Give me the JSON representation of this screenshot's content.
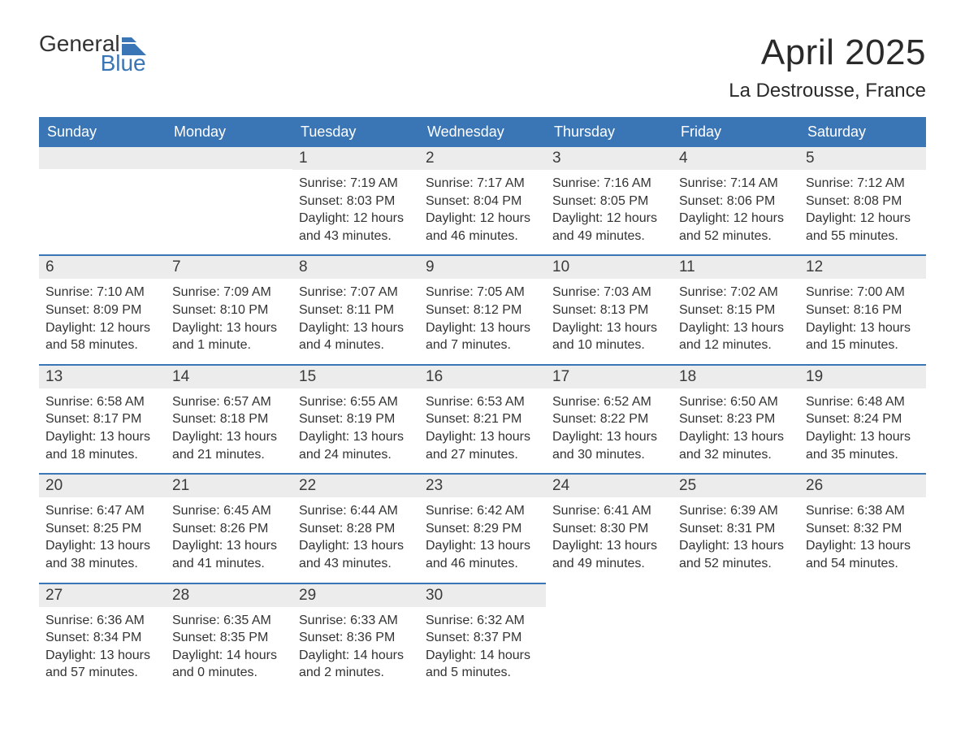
{
  "logo": {
    "general": "General",
    "blue": "Blue"
  },
  "title": {
    "month": "April 2025",
    "location": "La Destrousse, France"
  },
  "colors": {
    "header_bg": "#3a76b5",
    "header_text": "#ffffff",
    "daynum_bg": "#ececec",
    "border_top": "#3a76b5",
    "body_text": "#333333",
    "page_bg": "#ffffff",
    "logo_blue": "#3a76b5"
  },
  "weekdays": [
    "Sunday",
    "Monday",
    "Tuesday",
    "Wednesday",
    "Thursday",
    "Friday",
    "Saturday"
  ],
  "weeks": [
    [
      null,
      null,
      {
        "n": "1",
        "sunrise": "Sunrise: 7:19 AM",
        "sunset": "Sunset: 8:03 PM",
        "daylight": "Daylight: 12 hours and 43 minutes."
      },
      {
        "n": "2",
        "sunrise": "Sunrise: 7:17 AM",
        "sunset": "Sunset: 8:04 PM",
        "daylight": "Daylight: 12 hours and 46 minutes."
      },
      {
        "n": "3",
        "sunrise": "Sunrise: 7:16 AM",
        "sunset": "Sunset: 8:05 PM",
        "daylight": "Daylight: 12 hours and 49 minutes."
      },
      {
        "n": "4",
        "sunrise": "Sunrise: 7:14 AM",
        "sunset": "Sunset: 8:06 PM",
        "daylight": "Daylight: 12 hours and 52 minutes."
      },
      {
        "n": "5",
        "sunrise": "Sunrise: 7:12 AM",
        "sunset": "Sunset: 8:08 PM",
        "daylight": "Daylight: 12 hours and 55 minutes."
      }
    ],
    [
      {
        "n": "6",
        "sunrise": "Sunrise: 7:10 AM",
        "sunset": "Sunset: 8:09 PM",
        "daylight": "Daylight: 12 hours and 58 minutes."
      },
      {
        "n": "7",
        "sunrise": "Sunrise: 7:09 AM",
        "sunset": "Sunset: 8:10 PM",
        "daylight": "Daylight: 13 hours and 1 minute."
      },
      {
        "n": "8",
        "sunrise": "Sunrise: 7:07 AM",
        "sunset": "Sunset: 8:11 PM",
        "daylight": "Daylight: 13 hours and 4 minutes."
      },
      {
        "n": "9",
        "sunrise": "Sunrise: 7:05 AM",
        "sunset": "Sunset: 8:12 PM",
        "daylight": "Daylight: 13 hours and 7 minutes."
      },
      {
        "n": "10",
        "sunrise": "Sunrise: 7:03 AM",
        "sunset": "Sunset: 8:13 PM",
        "daylight": "Daylight: 13 hours and 10 minutes."
      },
      {
        "n": "11",
        "sunrise": "Sunrise: 7:02 AM",
        "sunset": "Sunset: 8:15 PM",
        "daylight": "Daylight: 13 hours and 12 minutes."
      },
      {
        "n": "12",
        "sunrise": "Sunrise: 7:00 AM",
        "sunset": "Sunset: 8:16 PM",
        "daylight": "Daylight: 13 hours and 15 minutes."
      }
    ],
    [
      {
        "n": "13",
        "sunrise": "Sunrise: 6:58 AM",
        "sunset": "Sunset: 8:17 PM",
        "daylight": "Daylight: 13 hours and 18 minutes."
      },
      {
        "n": "14",
        "sunrise": "Sunrise: 6:57 AM",
        "sunset": "Sunset: 8:18 PM",
        "daylight": "Daylight: 13 hours and 21 minutes."
      },
      {
        "n": "15",
        "sunrise": "Sunrise: 6:55 AM",
        "sunset": "Sunset: 8:19 PM",
        "daylight": "Daylight: 13 hours and 24 minutes."
      },
      {
        "n": "16",
        "sunrise": "Sunrise: 6:53 AM",
        "sunset": "Sunset: 8:21 PM",
        "daylight": "Daylight: 13 hours and 27 minutes."
      },
      {
        "n": "17",
        "sunrise": "Sunrise: 6:52 AM",
        "sunset": "Sunset: 8:22 PM",
        "daylight": "Daylight: 13 hours and 30 minutes."
      },
      {
        "n": "18",
        "sunrise": "Sunrise: 6:50 AM",
        "sunset": "Sunset: 8:23 PM",
        "daylight": "Daylight: 13 hours and 32 minutes."
      },
      {
        "n": "19",
        "sunrise": "Sunrise: 6:48 AM",
        "sunset": "Sunset: 8:24 PM",
        "daylight": "Daylight: 13 hours and 35 minutes."
      }
    ],
    [
      {
        "n": "20",
        "sunrise": "Sunrise: 6:47 AM",
        "sunset": "Sunset: 8:25 PM",
        "daylight": "Daylight: 13 hours and 38 minutes."
      },
      {
        "n": "21",
        "sunrise": "Sunrise: 6:45 AM",
        "sunset": "Sunset: 8:26 PM",
        "daylight": "Daylight: 13 hours and 41 minutes."
      },
      {
        "n": "22",
        "sunrise": "Sunrise: 6:44 AM",
        "sunset": "Sunset: 8:28 PM",
        "daylight": "Daylight: 13 hours and 43 minutes."
      },
      {
        "n": "23",
        "sunrise": "Sunrise: 6:42 AM",
        "sunset": "Sunset: 8:29 PM",
        "daylight": "Daylight: 13 hours and 46 minutes."
      },
      {
        "n": "24",
        "sunrise": "Sunrise: 6:41 AM",
        "sunset": "Sunset: 8:30 PM",
        "daylight": "Daylight: 13 hours and 49 minutes."
      },
      {
        "n": "25",
        "sunrise": "Sunrise: 6:39 AM",
        "sunset": "Sunset: 8:31 PM",
        "daylight": "Daylight: 13 hours and 52 minutes."
      },
      {
        "n": "26",
        "sunrise": "Sunrise: 6:38 AM",
        "sunset": "Sunset: 8:32 PM",
        "daylight": "Daylight: 13 hours and 54 minutes."
      }
    ],
    [
      {
        "n": "27",
        "sunrise": "Sunrise: 6:36 AM",
        "sunset": "Sunset: 8:34 PM",
        "daylight": "Daylight: 13 hours and 57 minutes."
      },
      {
        "n": "28",
        "sunrise": "Sunrise: 6:35 AM",
        "sunset": "Sunset: 8:35 PM",
        "daylight": "Daylight: 14 hours and 0 minutes."
      },
      {
        "n": "29",
        "sunrise": "Sunrise: 6:33 AM",
        "sunset": "Sunset: 8:36 PM",
        "daylight": "Daylight: 14 hours and 2 minutes."
      },
      {
        "n": "30",
        "sunrise": "Sunrise: 6:32 AM",
        "sunset": "Sunset: 8:37 PM",
        "daylight": "Daylight: 14 hours and 5 minutes."
      },
      null,
      null,
      null
    ]
  ]
}
